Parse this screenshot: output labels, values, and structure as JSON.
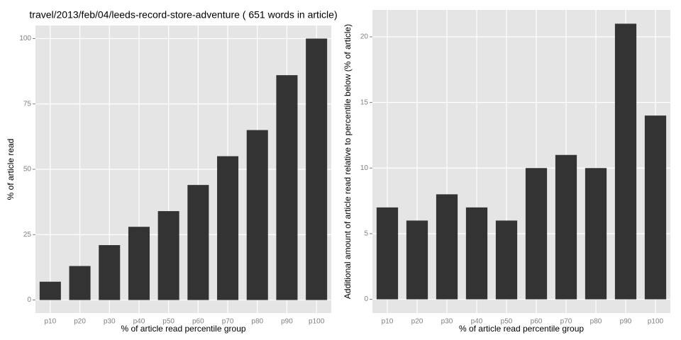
{
  "chart_data": [
    {
      "type": "bar",
      "title": "travel/2013/feb/04/leeds-record-store-adventure ( 651 words in article)",
      "x_label": "% of article read percentile group",
      "y_label": "% of article read",
      "categories": [
        "p10",
        "p20",
        "p30",
        "p40",
        "p50",
        "p60",
        "p70",
        "p80",
        "p90",
        "p100"
      ],
      "values": [
        7,
        13,
        21,
        28,
        34,
        44,
        55,
        65,
        86,
        100
      ],
      "color": "#333333",
      "ylim": [
        -5,
        105
      ],
      "yticks": [
        0,
        25,
        50,
        75,
        100
      ],
      "grid": true
    },
    {
      "type": "bar",
      "x_label": "% of article read percentile group",
      "y_label": "Additional amount of article read relative to percentile below (% of article)",
      "categories": [
        "p10",
        "p20",
        "p30",
        "p40",
        "p50",
        "p60",
        "p70",
        "p80",
        "p90",
        "p100"
      ],
      "values": [
        7,
        6,
        8,
        7,
        6,
        10,
        11,
        10,
        21,
        14
      ],
      "color": "#333333",
      "ylim": [
        -1.05,
        22.05
      ],
      "yticks": [
        0,
        5,
        10,
        15,
        20
      ],
      "grid": true
    }
  ]
}
